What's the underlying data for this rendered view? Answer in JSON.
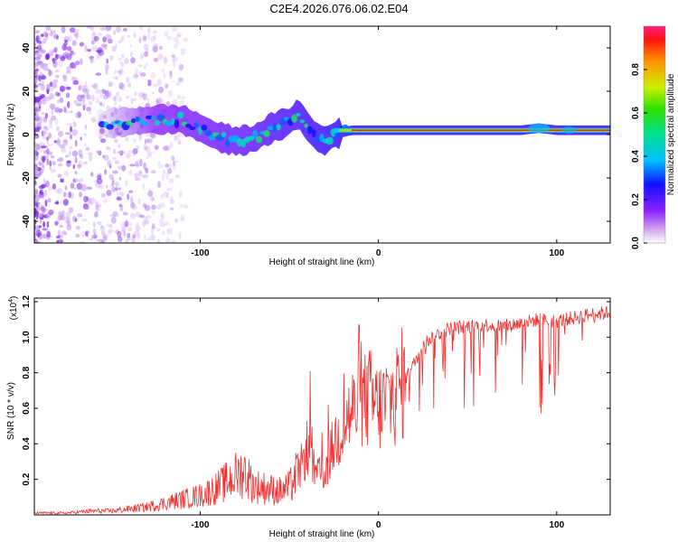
{
  "title": "C2E4.2026.076.06.02.E04",
  "chart_data": [
    {
      "type": "heatmap",
      "xlabel": "Height of straight line (km)",
      "ylabel": "Frequency (Hz)",
      "xlim": [
        -193,
        130
      ],
      "ylim": [
        -50,
        50
      ],
      "xticks": [
        -100,
        0,
        100
      ],
      "yticks": [
        -40,
        -20,
        0,
        20,
        40
      ],
      "colorbar": {
        "label": "Normalized spectral amplitude",
        "range": [
          0.0,
          1.0
        ],
        "ticks": [
          "0.0",
          "0.2",
          "0.4",
          "0.6",
          "0.8"
        ]
      },
      "ridge": {
        "x": [
          -155,
          -140,
          -125,
          -110,
          -100,
          -90,
          -80,
          -70,
          -60,
          -50,
          -45,
          -40,
          -35,
          -30,
          -25,
          -15,
          0,
          20,
          50,
          80,
          90,
          100,
          110,
          130
        ],
        "y": [
          5,
          6,
          7,
          7,
          3,
          -1,
          -3,
          -2,
          3,
          6,
          10,
          4,
          -1,
          -3,
          0,
          2,
          2,
          2,
          2,
          2,
          3,
          2,
          2,
          2
        ]
      }
    },
    {
      "type": "line",
      "xlabel": "Height of straight line (km)",
      "ylabel": "SNR (10 * v/v)",
      "multiplier": "(x10",
      "multiplier_exp": "4",
      "xlim": [
        -193,
        130
      ],
      "ylim": [
        0,
        1.22
      ],
      "xticks": [
        -100,
        0,
        100
      ],
      "yticks": [
        "0.2",
        "0.4",
        "0.6",
        "0.8",
        "1.0",
        "1.2"
      ],
      "series": [
        {
          "name": "SNR",
          "color": "#f03030",
          "x": [
            -193,
            -175,
            -160,
            -150,
            -140,
            -130,
            -120,
            -110,
            -100,
            -90,
            -80,
            -75,
            -70,
            -65,
            -60,
            -55,
            -50,
            -45,
            -40,
            -35,
            -30,
            -25,
            -20,
            -15,
            -10,
            -5,
            0,
            10,
            20,
            25,
            30,
            40,
            50,
            60,
            70,
            80,
            90,
            100,
            110,
            120,
            130
          ],
          "values": [
            0.01,
            0.01,
            0.02,
            0.02,
            0.03,
            0.04,
            0.06,
            0.08,
            0.1,
            0.14,
            0.2,
            0.22,
            0.15,
            0.14,
            0.13,
            0.12,
            0.14,
            0.22,
            0.38,
            0.22,
            0.24,
            0.4,
            0.5,
            0.58,
            0.62,
            0.66,
            0.6,
            0.68,
            0.85,
            0.96,
            1.0,
            1.05,
            1.06,
            1.07,
            1.06,
            1.08,
            1.1,
            1.09,
            1.11,
            1.13,
            1.14
          ]
        }
      ]
    }
  ]
}
